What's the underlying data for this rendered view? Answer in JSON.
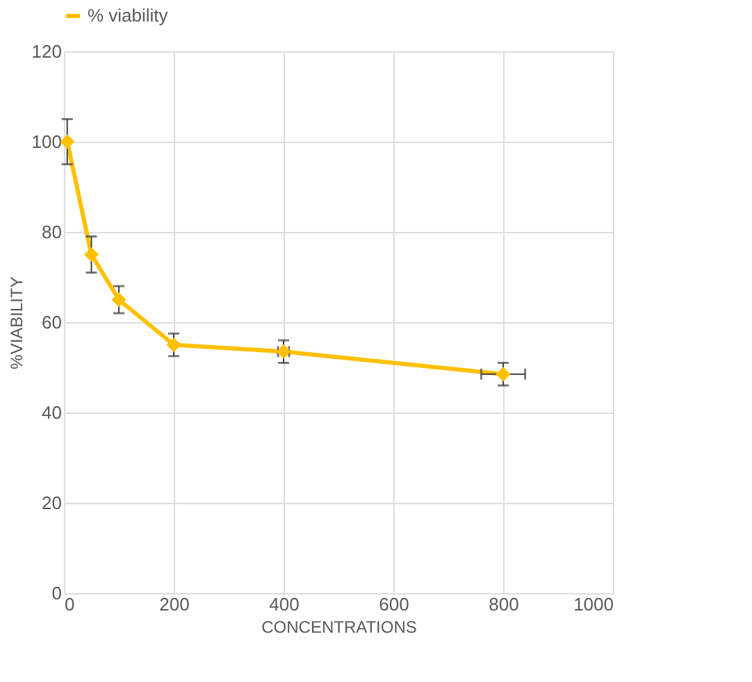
{
  "chart_data": {
    "type": "line",
    "xlabel": "CONCENTRATIONS",
    "ylabel": "%VIABILITY",
    "x": [
      6,
      50,
      100,
      200,
      400,
      800
    ],
    "series": [
      {
        "name": "% viability",
        "color": "#ffc000",
        "values": [
          100,
          75,
          65,
          55,
          53.5,
          48.5
        ],
        "errors": [
          5,
          4,
          3,
          2.5,
          2.5,
          2.5
        ],
        "xerrors": [
          null,
          null,
          null,
          null,
          10,
          40
        ]
      }
    ],
    "xlim": [
      0,
      1000
    ],
    "xticks": [
      0,
      200,
      400,
      600,
      800,
      1000
    ],
    "ylim": [
      0,
      120
    ],
    "yticks": [
      0,
      20,
      40,
      60,
      80,
      100,
      120
    ],
    "grid": true,
    "legend": "top",
    "marker": "diamond",
    "line_style": "solid"
  }
}
